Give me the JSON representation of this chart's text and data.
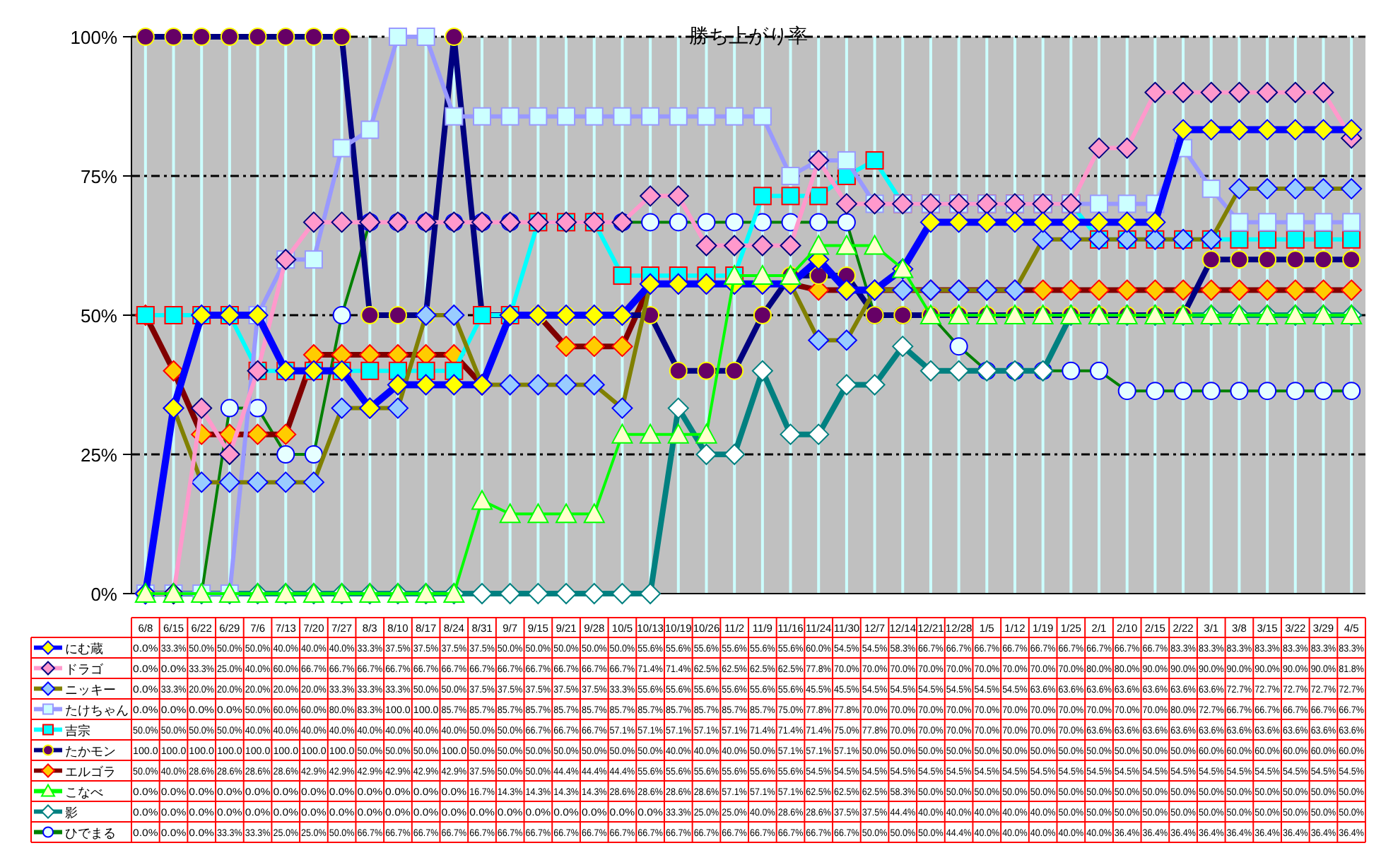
{
  "chart_data": {
    "type": "line",
    "title": "勝ち上がり率",
    "categories": [
      "6/8",
      "6/15",
      "6/22",
      "6/29",
      "7/6",
      "7/13",
      "7/20",
      "7/27",
      "8/3",
      "8/10",
      "8/17",
      "8/24",
      "8/31",
      "9/7",
      "9/15",
      "9/21",
      "9/28",
      "10/5",
      "10/13",
      "10/19",
      "10/26",
      "11/2",
      "11/9",
      "11/16",
      "11/24",
      "11/30",
      "12/7",
      "12/14",
      "12/21",
      "12/28",
      "1/5",
      "1/12",
      "1/19",
      "1/25",
      "2/1",
      "2/10",
      "2/15",
      "2/22",
      "3/1",
      "3/8",
      "3/15",
      "3/22",
      "3/29",
      "4/5"
    ],
    "ylim": [
      0,
      100
    ],
    "yticks": [
      {
        "value": 0,
        "label": "0%"
      },
      {
        "value": 25,
        "label": "25%"
      },
      {
        "value": 50,
        "label": "50%"
      },
      {
        "value": 75,
        "label": "75%"
      },
      {
        "value": 100,
        "label": "100%"
      }
    ],
    "grid": true,
    "legend": "bottom",
    "series": [
      {
        "name": "にむ蔵",
        "color": "#0000ff",
        "marker": "diamond",
        "values": [
          0,
          33.3,
          50,
          50,
          50,
          40,
          40,
          40,
          33.3,
          37.5,
          37.5,
          37.5,
          37.5,
          50,
          50,
          50,
          50,
          50,
          55.6,
          55.6,
          55.6,
          55.6,
          55.6,
          55.6,
          60,
          54.5,
          54.5,
          58.3,
          66.7,
          66.7,
          66.7,
          66.7,
          66.7,
          66.7,
          66.7,
          66.7,
          66.7,
          83.3,
          83.3,
          83.3,
          83.3,
          83.3,
          83.3,
          83.3
        ],
        "value_labels": [
          "0.0%",
          "33.3%",
          "50.0%",
          "50.0%",
          "50.0%",
          "40.0%",
          "40.0%",
          "40.0%",
          "33.3%",
          "37.5%",
          "37.5%",
          "37.5%",
          "37.5%",
          "50.0%",
          "50.0%",
          "50.0%",
          "50.0%",
          "50.0%",
          "55.6%",
          "55.6%",
          "55.6%",
          "55.6%",
          "55.6%",
          "55.6%",
          "60.0%",
          "54.5%",
          "54.5%",
          "58.3%",
          "66.7%",
          "66.7%",
          "66.7%",
          "66.7%",
          "66.7%",
          "66.7%",
          "66.7%",
          "66.7%",
          "66.7%",
          "83.3%",
          "83.3%",
          "83.3%",
          "83.3%",
          "83.3%",
          "83.3%",
          "83.3%"
        ]
      },
      {
        "name": "ドラゴ",
        "color": "#ff99cc",
        "marker": "diamond",
        "values": [
          0,
          0,
          33.3,
          25,
          40,
          60,
          66.7,
          66.7,
          66.7,
          66.7,
          66.7,
          66.7,
          66.7,
          66.7,
          66.7,
          66.7,
          66.7,
          66.7,
          71.4,
          71.4,
          62.5,
          62.5,
          62.5,
          62.5,
          77.8,
          70,
          70,
          70,
          70,
          70,
          70,
          70,
          70,
          70,
          80,
          80,
          90,
          90,
          90,
          90,
          90,
          90,
          90,
          81.8
        ],
        "value_labels": [
          "0.0%",
          "0.0%",
          "33.3%",
          "25.0%",
          "40.0%",
          "60.0%",
          "66.7%",
          "66.7%",
          "66.7%",
          "66.7%",
          "66.7%",
          "66.7%",
          "66.7%",
          "66.7%",
          "66.7%",
          "66.7%",
          "66.7%",
          "66.7%",
          "71.4%",
          "71.4%",
          "62.5%",
          "62.5%",
          "62.5%",
          "62.5%",
          "77.8%",
          "70.0%",
          "70.0%",
          "70.0%",
          "70.0%",
          "70.0%",
          "70.0%",
          "70.0%",
          "70.0%",
          "70.0%",
          "80.0%",
          "80.0%",
          "90.0%",
          "90.0%",
          "90.0%",
          "90.0%",
          "90.0%",
          "90.0%",
          "90.0%",
          "81.8%"
        ]
      },
      {
        "name": "ニッキー",
        "color": "#808000",
        "marker": "diamond",
        "values": [
          0,
          33.3,
          20,
          20,
          20,
          20,
          20,
          33.3,
          33.3,
          33.3,
          50,
          50,
          37.5,
          37.5,
          37.5,
          37.5,
          37.5,
          33.3,
          55.6,
          55.6,
          55.6,
          55.6,
          55.6,
          55.6,
          45.5,
          45.5,
          54.5,
          54.5,
          54.5,
          54.5,
          54.5,
          54.5,
          63.6,
          63.6,
          63.6,
          63.6,
          63.6,
          63.6,
          63.6,
          72.7,
          72.7,
          72.7,
          72.7,
          72.7
        ],
        "value_labels": [
          "0.0%",
          "33.3%",
          "20.0%",
          "20.0%",
          "20.0%",
          "20.0%",
          "20.0%",
          "33.3%",
          "33.3%",
          "33.3%",
          "50.0%",
          "50.0%",
          "37.5%",
          "37.5%",
          "37.5%",
          "37.5%",
          "37.5%",
          "33.3%",
          "55.6%",
          "55.6%",
          "55.6%",
          "55.6%",
          "55.6%",
          "55.6%",
          "45.5%",
          "45.5%",
          "54.5%",
          "54.5%",
          "54.5%",
          "54.5%",
          "54.5%",
          "54.5%",
          "63.6%",
          "63.6%",
          "63.6%",
          "63.6%",
          "63.6%",
          "63.6%",
          "63.6%",
          "72.7%",
          "72.7%",
          "72.7%",
          "72.7%",
          "72.7%"
        ]
      },
      {
        "name": "たけちゃん",
        "color": "#9999ff",
        "marker": "square",
        "values": [
          0,
          0,
          0,
          0,
          50,
          60,
          60,
          80,
          83.3,
          100,
          100,
          85.7,
          85.7,
          85.7,
          85.7,
          85.7,
          85.7,
          85.7,
          85.7,
          85.7,
          85.7,
          85.7,
          85.7,
          75,
          77.8,
          77.8,
          70,
          70,
          70,
          70,
          70,
          70,
          70,
          70,
          70,
          70,
          70,
          80,
          72.7,
          66.7,
          66.7,
          66.7,
          66.7,
          66.7
        ],
        "value_labels": [
          "0.0%",
          "0.0%",
          "0.0%",
          "0.0%",
          "50.0%",
          "60.0%",
          "60.0%",
          "80.0%",
          "83.3%",
          "100.0",
          "100.0",
          "85.7%",
          "85.7%",
          "85.7%",
          "85.7%",
          "85.7%",
          "85.7%",
          "85.7%",
          "85.7%",
          "85.7%",
          "85.7%",
          "85.7%",
          "85.7%",
          "75.0%",
          "77.8%",
          "77.8%",
          "70.0%",
          "70.0%",
          "70.0%",
          "70.0%",
          "70.0%",
          "70.0%",
          "70.0%",
          "70.0%",
          "70.0%",
          "70.0%",
          "70.0%",
          "80.0%",
          "72.7%",
          "66.7%",
          "66.7%",
          "66.7%",
          "66.7%",
          "66.7%"
        ]
      },
      {
        "name": "吉宗",
        "color": "#00ffff",
        "marker": "square",
        "values": [
          50,
          50,
          50,
          50,
          40,
          40,
          40,
          40,
          40,
          40,
          40,
          40,
          50,
          50,
          66.7,
          66.7,
          66.7,
          57.1,
          57.1,
          57.1,
          57.1,
          57.1,
          71.4,
          71.4,
          71.4,
          75,
          77.8,
          70,
          70,
          70,
          70,
          70,
          70,
          70,
          63.6,
          63.6,
          63.6,
          63.6,
          63.6,
          63.6,
          63.6,
          63.6,
          63.6,
          63.6
        ],
        "value_labels": [
          "50.0%",
          "50.0%",
          "50.0%",
          "50.0%",
          "40.0%",
          "40.0%",
          "40.0%",
          "40.0%",
          "40.0%",
          "40.0%",
          "40.0%",
          "40.0%",
          "50.0%",
          "50.0%",
          "66.7%",
          "66.7%",
          "66.7%",
          "57.1%",
          "57.1%",
          "57.1%",
          "57.1%",
          "57.1%",
          "71.4%",
          "71.4%",
          "71.4%",
          "75.0%",
          "77.8%",
          "70.0%",
          "70.0%",
          "70.0%",
          "70.0%",
          "70.0%",
          "70.0%",
          "70.0%",
          "63.6%",
          "63.6%",
          "63.6%",
          "63.6%",
          "63.6%",
          "63.6%",
          "63.6%",
          "63.6%",
          "63.6%",
          "63.6%"
        ]
      },
      {
        "name": "たかモン",
        "color": "#000080",
        "marker": "circle",
        "values": [
          100,
          100,
          100,
          100,
          100,
          100,
          100,
          100,
          50,
          50,
          50,
          100,
          50,
          50,
          50,
          50,
          50,
          50,
          50,
          40,
          40,
          40,
          50,
          57.1,
          57.1,
          57.1,
          50,
          50,
          50,
          50,
          50,
          50,
          50,
          50,
          50,
          50,
          50,
          50,
          60,
          60,
          60,
          60,
          60,
          60
        ],
        "value_labels": [
          "100.0",
          "100.0",
          "100.0",
          "100.0",
          "100.0",
          "100.0",
          "100.0",
          "100.0",
          "50.0%",
          "50.0%",
          "50.0%",
          "100.0",
          "50.0%",
          "50.0%",
          "50.0%",
          "50.0%",
          "50.0%",
          "50.0%",
          "50.0%",
          "40.0%",
          "40.0%",
          "40.0%",
          "50.0%",
          "57.1%",
          "57.1%",
          "57.1%",
          "50.0%",
          "50.0%",
          "50.0%",
          "50.0%",
          "50.0%",
          "50.0%",
          "50.0%",
          "50.0%",
          "50.0%",
          "50.0%",
          "50.0%",
          "50.0%",
          "60.0%",
          "60.0%",
          "60.0%",
          "60.0%",
          "60.0%",
          "60.0%"
        ]
      },
      {
        "name": "エルゴラ",
        "color": "#800000",
        "marker": "diamond",
        "values": [
          50,
          40,
          28.6,
          28.6,
          28.6,
          28.6,
          42.9,
          42.9,
          42.9,
          42.9,
          42.9,
          42.9,
          37.5,
          50,
          50,
          44.4,
          44.4,
          44.4,
          55.6,
          55.6,
          55.6,
          55.6,
          55.6,
          55.6,
          54.5,
          54.5,
          54.5,
          54.5,
          54.5,
          54.5,
          54.5,
          54.5,
          54.5,
          54.5,
          54.5,
          54.5,
          54.5,
          54.5,
          54.5,
          54.5,
          54.5,
          54.5,
          54.5,
          54.5
        ],
        "value_labels": [
          "50.0%",
          "40.0%",
          "28.6%",
          "28.6%",
          "28.6%",
          "28.6%",
          "42.9%",
          "42.9%",
          "42.9%",
          "42.9%",
          "42.9%",
          "42.9%",
          "37.5%",
          "50.0%",
          "50.0%",
          "44.4%",
          "44.4%",
          "44.4%",
          "55.6%",
          "55.6%",
          "55.6%",
          "55.6%",
          "55.6%",
          "55.6%",
          "54.5%",
          "54.5%",
          "54.5%",
          "54.5%",
          "54.5%",
          "54.5%",
          "54.5%",
          "54.5%",
          "54.5%",
          "54.5%",
          "54.5%",
          "54.5%",
          "54.5%",
          "54.5%",
          "54.5%",
          "54.5%",
          "54.5%",
          "54.5%",
          "54.5%",
          "54.5%"
        ]
      },
      {
        "name": "こなべ",
        "color": "#00ff00",
        "marker": "triangle",
        "values": [
          0,
          0,
          0,
          0,
          0,
          0,
          0,
          0,
          0,
          0,
          0,
          0,
          16.7,
          14.3,
          14.3,
          14.3,
          14.3,
          28.6,
          28.6,
          28.6,
          28.6,
          57.1,
          57.1,
          57.1,
          62.5,
          62.5,
          62.5,
          58.3,
          50,
          50,
          50,
          50,
          50,
          50,
          50,
          50,
          50,
          50,
          50,
          50,
          50,
          50,
          50,
          50
        ],
        "value_labels": [
          "0.0%",
          "0.0%",
          "0.0%",
          "0.0%",
          "0.0%",
          "0.0%",
          "0.0%",
          "0.0%",
          "0.0%",
          "0.0%",
          "0.0%",
          "0.0%",
          "16.7%",
          "14.3%",
          "14.3%",
          "14.3%",
          "14.3%",
          "28.6%",
          "28.6%",
          "28.6%",
          "28.6%",
          "57.1%",
          "57.1%",
          "57.1%",
          "62.5%",
          "62.5%",
          "62.5%",
          "58.3%",
          "50.0%",
          "50.0%",
          "50.0%",
          "50.0%",
          "50.0%",
          "50.0%",
          "50.0%",
          "50.0%",
          "50.0%",
          "50.0%",
          "50.0%",
          "50.0%",
          "50.0%",
          "50.0%",
          "50.0%",
          "50.0%"
        ]
      },
      {
        "name": "影",
        "color": "#008080",
        "marker": "diamond",
        "values": [
          0,
          0,
          0,
          0,
          0,
          0,
          0,
          0,
          0,
          0,
          0,
          0,
          0,
          0,
          0,
          0,
          0,
          0,
          0,
          33.3,
          25,
          25,
          40,
          28.6,
          28.6,
          37.5,
          37.5,
          44.4,
          40,
          40,
          40,
          40,
          40,
          50,
          50,
          50,
          50,
          50,
          50,
          50,
          50,
          50,
          50,
          50
        ],
        "value_labels": [
          "0.0%",
          "0.0%",
          "0.0%",
          "0.0%",
          "0.0%",
          "0.0%",
          "0.0%",
          "0.0%",
          "0.0%",
          "0.0%",
          "0.0%",
          "0.0%",
          "0.0%",
          "0.0%",
          "0.0%",
          "0.0%",
          "0.0%",
          "0.0%",
          "0.0%",
          "33.3%",
          "25.0%",
          "25.0%",
          "40.0%",
          "28.6%",
          "28.6%",
          "37.5%",
          "37.5%",
          "44.4%",
          "40.0%",
          "40.0%",
          "40.0%",
          "40.0%",
          "40.0%",
          "50.0%",
          "50.0%",
          "50.0%",
          "50.0%",
          "50.0%",
          "50.0%",
          "50.0%",
          "50.0%",
          "50.0%",
          "50.0%",
          "50.0%"
        ]
      },
      {
        "name": "ひでまる",
        "color": "#008000",
        "marker": "circle",
        "values": [
          0,
          0,
          0,
          33.3,
          33.3,
          25,
          25,
          50,
          66.7,
          66.7,
          66.7,
          66.7,
          66.7,
          66.7,
          66.7,
          66.7,
          66.7,
          66.7,
          66.7,
          66.7,
          66.7,
          66.7,
          66.7,
          66.7,
          66.7,
          66.7,
          50,
          50,
          50,
          44.4,
          40,
          40,
          40,
          40,
          40,
          36.4,
          36.4,
          36.4,
          36.4,
          36.4,
          36.4,
          36.4,
          36.4,
          36.4
        ],
        "value_labels": [
          "0.0%",
          "0.0%",
          "0.0%",
          "33.3%",
          "33.3%",
          "25.0%",
          "25.0%",
          "50.0%",
          "66.7%",
          "66.7%",
          "66.7%",
          "66.7%",
          "66.7%",
          "66.7%",
          "66.7%",
          "66.7%",
          "66.7%",
          "66.7%",
          "66.7%",
          "66.7%",
          "66.7%",
          "66.7%",
          "66.7%",
          "66.7%",
          "66.7%",
          "66.7%",
          "50.0%",
          "50.0%",
          "50.0%",
          "44.4%",
          "40.0%",
          "40.0%",
          "40.0%",
          "40.0%",
          "40.0%",
          "36.4%",
          "36.4%",
          "36.4%",
          "36.4%",
          "36.4%",
          "36.4%",
          "36.4%",
          "36.4%",
          "36.4%"
        ]
      }
    ]
  }
}
